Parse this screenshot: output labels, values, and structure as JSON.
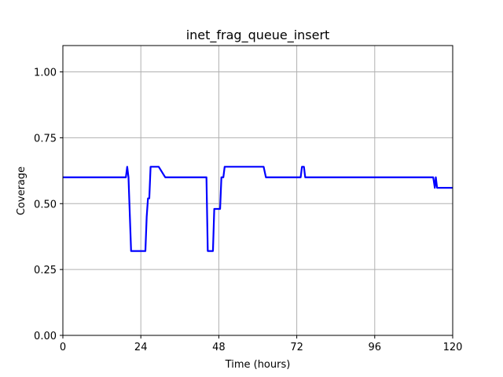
{
  "chart_data": {
    "type": "line",
    "title": "inet_frag_queue_insert",
    "xlabel": "Time (hours)",
    "ylabel": "Coverage",
    "xlim": [
      0,
      120
    ],
    "ylim": [
      0,
      1.1
    ],
    "xticks": [
      0,
      24,
      48,
      72,
      96,
      120
    ],
    "yticks": [
      0.0,
      0.25,
      0.5,
      0.75,
      1.0
    ],
    "xtick_labels": [
      "0",
      "24",
      "48",
      "72",
      "96",
      "120"
    ],
    "ytick_labels": [
      "0.00",
      "0.25",
      "0.50",
      "0.75",
      "1.00"
    ],
    "grid": true,
    "series": [
      {
        "color": "#0000ff",
        "x": [
          0,
          19.4,
          19.8,
          20.2,
          21.0,
          25.4,
          25.8,
          26.2,
          26.6,
          27.0,
          27.4,
          29.5,
          31.5,
          44.2,
          44.6,
          46.2,
          46.6,
          48.4,
          48.8,
          49.4,
          49.8,
          50.2,
          61.8,
          62.5,
          73.2,
          73.6,
          74.2,
          74.6,
          114.0,
          114.5,
          114.8,
          115.2,
          115.6,
          116.0,
          120
        ],
        "y": [
          0.6,
          0.6,
          0.64,
          0.6,
          0.32,
          0.32,
          0.45,
          0.52,
          0.52,
          0.64,
          0.64,
          0.64,
          0.6,
          0.6,
          0.32,
          0.32,
          0.48,
          0.48,
          0.6,
          0.6,
          0.64,
          0.64,
          0.64,
          0.6,
          0.6,
          0.64,
          0.64,
          0.6,
          0.6,
          0.56,
          0.6,
          0.56,
          0.56,
          0.56,
          0.56
        ]
      }
    ]
  }
}
